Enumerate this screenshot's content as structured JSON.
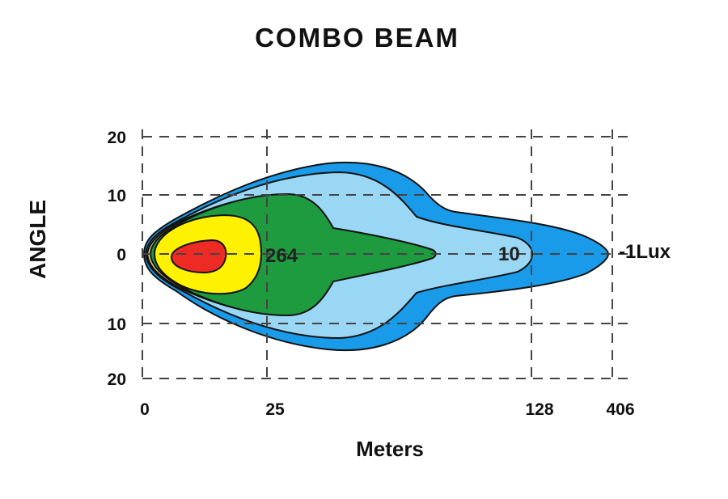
{
  "chart_data": {
    "type": "beam-pattern",
    "title": "COMBO  BEAM",
    "xlabel": "Meters",
    "ylabel": "ANGLE",
    "x_ticks": [
      "0",
      "25",
      "128",
      "406"
    ],
    "y_ticks": [
      "20",
      "10",
      "0",
      "10",
      "20"
    ],
    "grid": true,
    "contours": [
      {
        "label": "",
        "color": "#1a9bea"
      },
      {
        "label": "",
        "color": "#9ad7f5"
      },
      {
        "label": "",
        "color": "#e3d07f"
      },
      {
        "label": "",
        "color": "#1e9a3f"
      },
      {
        "label": "",
        "color": "#fff200"
      },
      {
        "label": "",
        "color": "#ee2a24"
      }
    ],
    "value_labels": [
      "264",
      "10"
    ],
    "end_label": "-1Lux"
  }
}
